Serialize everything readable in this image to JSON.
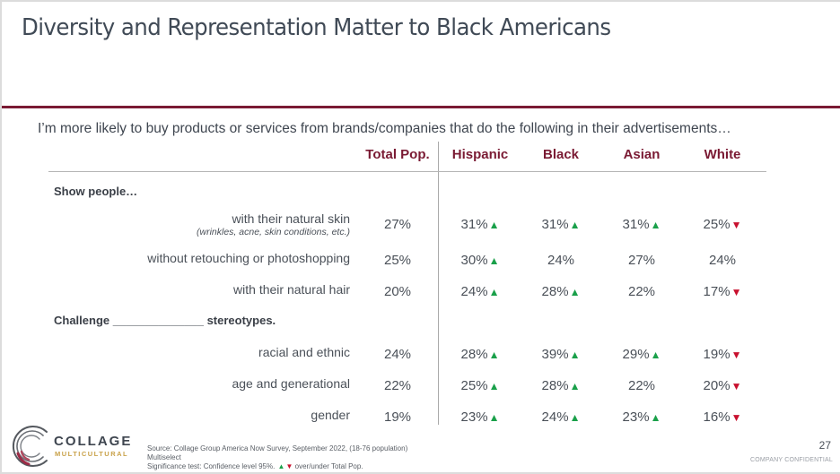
{
  "slide": {
    "title": "Diversity and Representation Matter to Black Americans",
    "subtitle": "I’m more likely to buy products or services from brands/companies that do the following in their advertisements…",
    "page_number": "27",
    "confidential_label": "COMPANY CONFIDENTIAL",
    "accent_color": "#7a1a33"
  },
  "table": {
    "columns": [
      "Total Pop.",
      "Hispanic",
      "Black",
      "Asian",
      "White"
    ],
    "sections": [
      {
        "heading": "Show people…",
        "rows": [
          {
            "label": "with their natural skin",
            "sublabel": "(wrinkles, acne, skin conditions, etc.)",
            "values": [
              "27%",
              "31%",
              "31%",
              "31%",
              "25%"
            ],
            "sig": [
              "",
              "up",
              "up",
              "up",
              "down"
            ]
          },
          {
            "label": "without retouching or photoshopping",
            "sublabel": "",
            "values": [
              "25%",
              "30%",
              "24%",
              "27%",
              "24%"
            ],
            "sig": [
              "",
              "up",
              "",
              "",
              ""
            ]
          },
          {
            "label": "with their natural hair",
            "sublabel": "",
            "values": [
              "20%",
              "24%",
              "28%",
              "22%",
              "17%"
            ],
            "sig": [
              "",
              "up",
              "up",
              "",
              "down"
            ]
          }
        ]
      },
      {
        "heading": "Challenge ______________ stereotypes.",
        "rows": [
          {
            "label": "racial and ethnic",
            "sublabel": "",
            "values": [
              "24%",
              "28%",
              "39%",
              "29%",
              "19%"
            ],
            "sig": [
              "",
              "up",
              "up",
              "up",
              "down"
            ]
          },
          {
            "label": "age and generational",
            "sublabel": "",
            "values": [
              "22%",
              "25%",
              "28%",
              "22%",
              "20%"
            ],
            "sig": [
              "",
              "up",
              "up",
              "",
              "down"
            ]
          },
          {
            "label": "gender",
            "sublabel": "",
            "values": [
              "19%",
              "23%",
              "24%",
              "23%",
              "16%"
            ],
            "sig": [
              "",
              "up",
              "up",
              "up",
              "down"
            ]
          }
        ]
      }
    ],
    "sig_up_symbol": "▲",
    "sig_down_symbol": "▼",
    "sig_up_color": "#1aa04a",
    "sig_down_color": "#c8102e"
  },
  "footer": {
    "source_line1": "Source: Collage Group America Now Survey, September 2022, (18-76 population)",
    "source_line2": "Multiselect",
    "source_line3_prefix": "Significance test: Confidence level 95%.",
    "source_line3_suffix": "over/under Total Pop.",
    "logo_word": "COLLAGE",
    "logo_sub": "MULTICULTURAL"
  }
}
